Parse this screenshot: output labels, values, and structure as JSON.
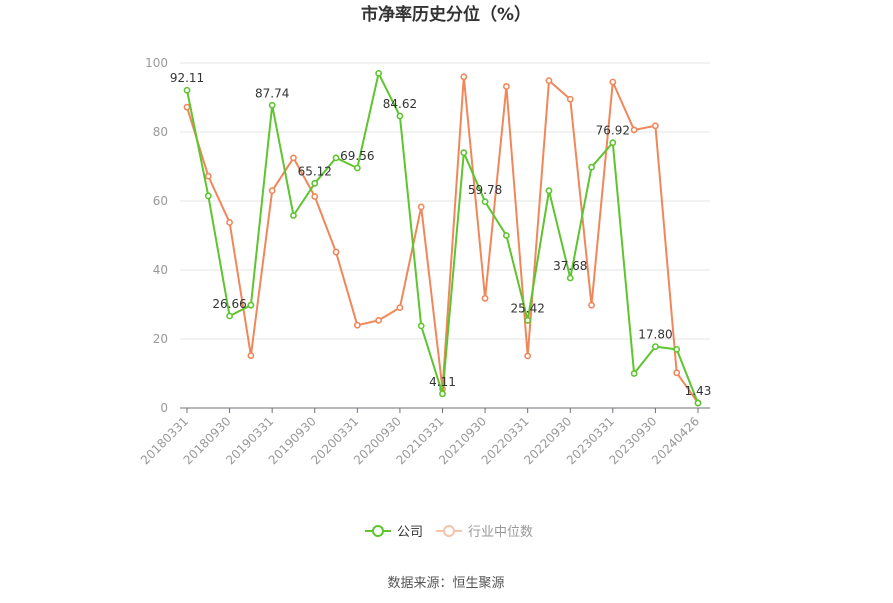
{
  "chart_data": {
    "type": "line",
    "title": "市净率历史分位（%）",
    "source": "数据来源：恒生聚源",
    "ylim": [
      0,
      100
    ],
    "yticks": [
      0,
      20,
      40,
      60,
      80,
      100
    ],
    "x_tick_labels": [
      "20180331",
      "20180930",
      "20190331",
      "20190930",
      "20200331",
      "20200930",
      "20210331",
      "20210930",
      "20220331",
      "20220930",
      "20230331",
      "20230930",
      "20240426"
    ],
    "x": [
      "20180331",
      "20180630",
      "20180930",
      "20181231",
      "20190331",
      "20190630",
      "20190930",
      "20191231",
      "20200331",
      "20200630",
      "20200930",
      "20201231",
      "20210331",
      "20210630",
      "20210930",
      "20211231",
      "20220331",
      "20220630",
      "20220930",
      "20221231",
      "20230331",
      "20230630",
      "20230930",
      "20231231",
      "20240426"
    ],
    "series": [
      {
        "name": "公司",
        "color": "#5ec42f",
        "values": [
          92.11,
          61.5,
          26.66,
          29.8,
          87.74,
          55.8,
          65.12,
          72.5,
          69.56,
          97.0,
          84.62,
          23.8,
          4.11,
          74.0,
          59.78,
          50.0,
          25.42,
          63.0,
          37.68,
          69.8,
          76.92,
          10.0,
          17.8,
          17.0,
          1.43
        ],
        "labels": {
          "0": "92.11",
          "2": "26.66",
          "4": "87.74",
          "6": "65.12",
          "8": "69.56",
          "10": "84.62",
          "12": "4.11",
          "14": "59.78",
          "16": "25.42",
          "18": "37.68",
          "20": "76.92",
          "22": "17.80",
          "24": "1.43"
        }
      },
      {
        "name": "行业中位数",
        "color": "#f0875a",
        "values": [
          87.2,
          67.2,
          53.8,
          15.2,
          63.0,
          72.5,
          61.3,
          45.2,
          24.0,
          25.4,
          29.1,
          58.3,
          5.5,
          96.0,
          31.8,
          93.2,
          15.1,
          94.9,
          89.5,
          29.8,
          94.5,
          80.6,
          81.8,
          10.2,
          1.5
        ]
      }
    ],
    "legend_position": "bottom-center",
    "grid": true
  }
}
